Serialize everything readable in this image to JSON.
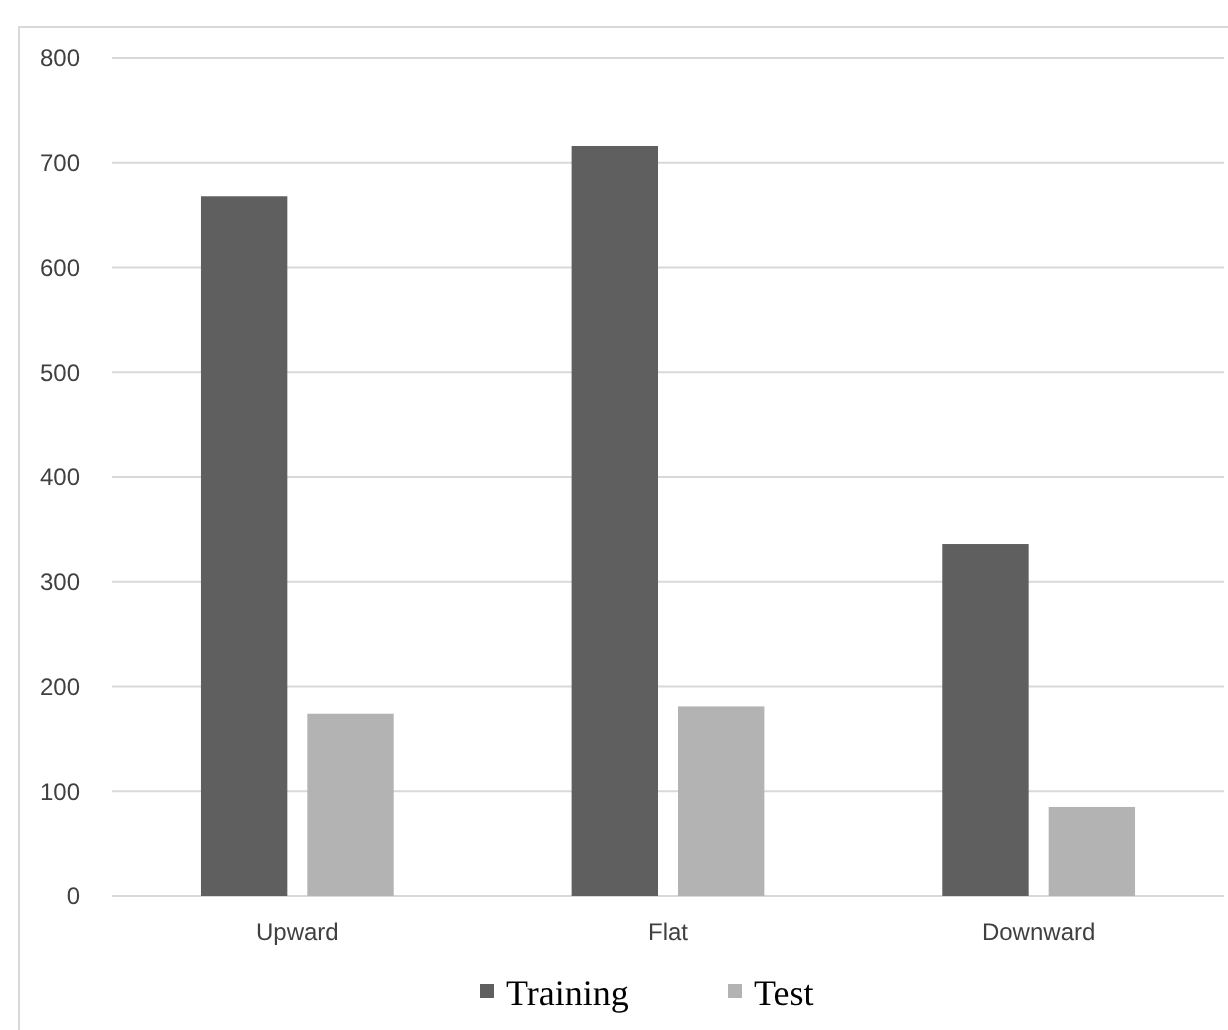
{
  "chart_data": {
    "type": "bar",
    "categories": [
      "Upward",
      "Flat",
      "Downward"
    ],
    "series": [
      {
        "name": "Training",
        "color": "#5f5f5f",
        "values": [
          668,
          716,
          336
        ]
      },
      {
        "name": "Test",
        "color": "#b3b3b3",
        "values": [
          174,
          181,
          85
        ]
      }
    ],
    "ylim": [
      0,
      800
    ],
    "yticks": [
      0,
      100,
      200,
      300,
      400,
      500,
      600,
      700,
      800
    ],
    "grid": "y",
    "legend": "bottom"
  }
}
